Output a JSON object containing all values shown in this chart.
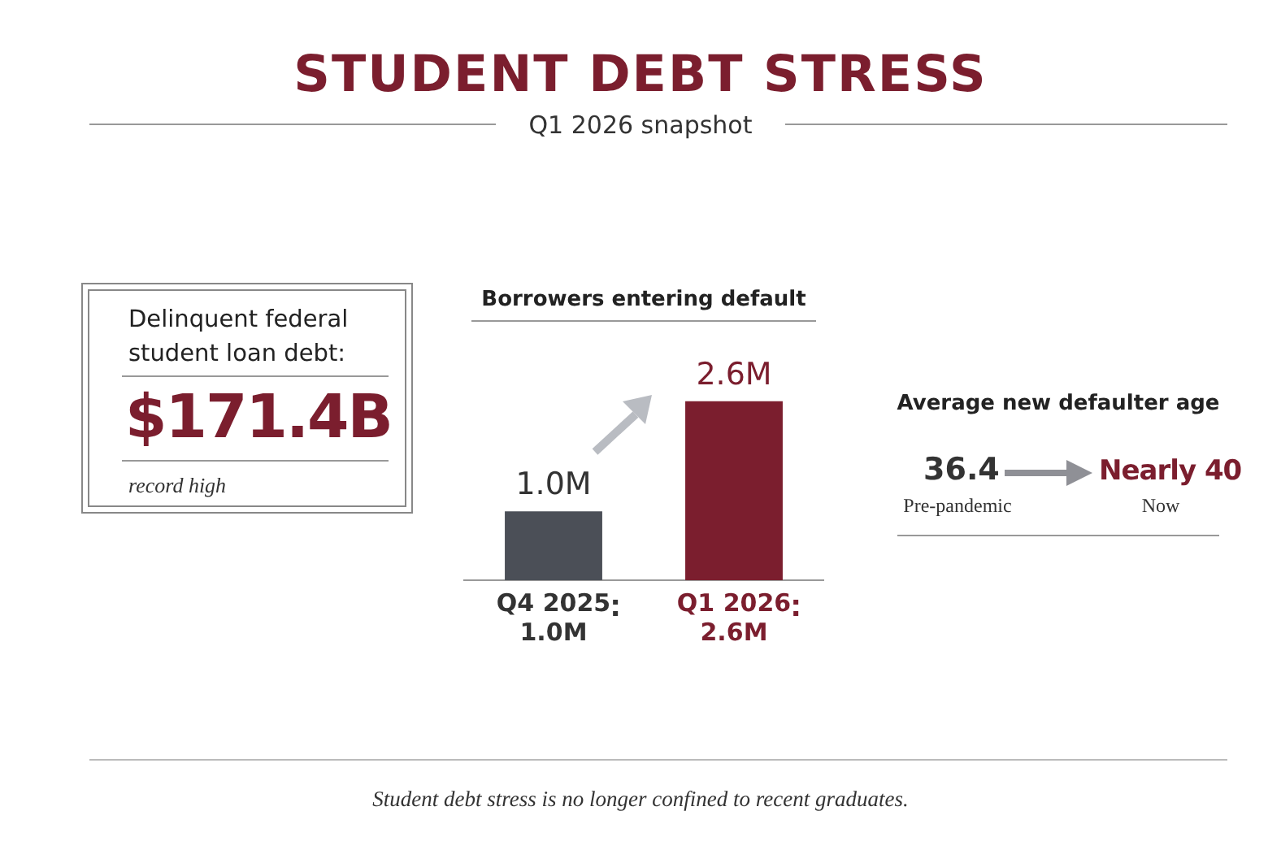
{
  "chart_data": [
    {
      "type": "other",
      "title": "STUDENT DEBT STRESS",
      "subtitle": "Q1 2026 snapshot",
      "annotations": [
        "Student debt stress is no longer confined to recent graduates."
      ]
    },
    {
      "type": "other",
      "title": "Delinquent federal student loan debt:",
      "annotations": [
        "$171.4B",
        "record high"
      ]
    },
    {
      "type": "bar",
      "title": "Borrowers entering default",
      "categories": [
        "Q4 2025",
        "Q1 2026"
      ],
      "values": [
        1.0,
        2.6
      ],
      "colors": [
        "#4b4f57",
        "#7b1e2e"
      ],
      "value_labels": [
        "1.0M",
        "2.6M"
      ]
    },
    {
      "type": "other",
      "title": "Average new defaulter age",
      "annotations": [
        "36.4",
        "Pre-pandemic",
        "Nearly 40",
        "Now"
      ]
    }
  ]
}
